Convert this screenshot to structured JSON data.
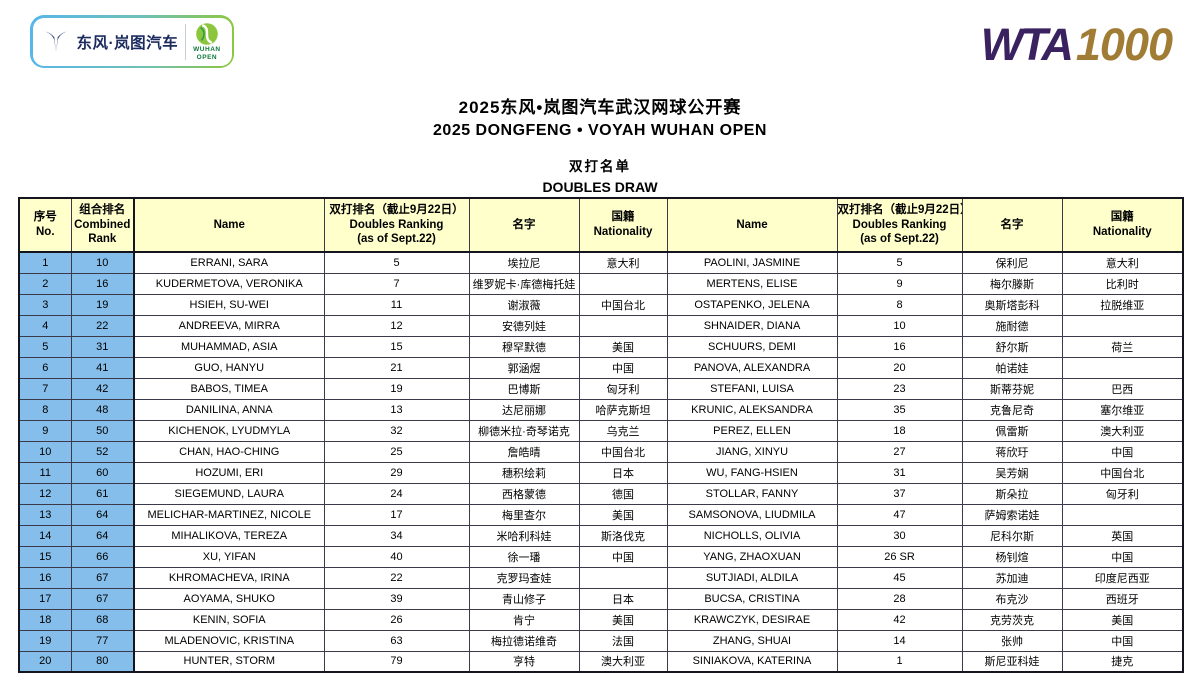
{
  "sponsor_logo": {
    "brand": "东风·岚图汽车",
    "event_line1": "WUHAN",
    "event_line2": "OPEN"
  },
  "wta_logo": {
    "wta": "WTA",
    "level": "1000"
  },
  "titles": {
    "title_cn": "2025东风•岚图汽车武汉网球公开赛",
    "title_en": "2025 DONGFENG • VOYAH WUHAN OPEN",
    "subtitle_cn": "双打名单",
    "subtitle_en": "DOUBLES DRAW"
  },
  "colors": {
    "header_bg": "#FFFFCC",
    "rank_col_bg": "#85BEEA",
    "wta_purple": "#3A2160",
    "wta_gold": "#A07C34",
    "voyah_navy": "#1B2B5E",
    "wuhan_green": "#8CC63E",
    "grid_border": "#3A3A4A"
  },
  "table": {
    "columns": [
      {
        "id": "no",
        "lines": [
          "序号",
          "No."
        ]
      },
      {
        "id": "combined",
        "lines": [
          "组合排名",
          "Combined",
          "Rank"
        ]
      },
      {
        "id": "name1",
        "lines": [
          "Name"
        ]
      },
      {
        "id": "rank1",
        "lines": [
          "双打排名（截止9月22日）",
          "Doubles Ranking",
          "(as of Sept.22)"
        ]
      },
      {
        "id": "cn1",
        "lines": [
          "名字"
        ]
      },
      {
        "id": "nat1",
        "lines": [
          "国籍",
          "Nationality"
        ]
      },
      {
        "id": "name2",
        "lines": [
          "Name"
        ]
      },
      {
        "id": "rank2",
        "lines": [
          "双打排名（截止9月22日）",
          "Doubles Ranking",
          "(as of Sept.22)"
        ]
      },
      {
        "id": "cn2",
        "lines": [
          "名字"
        ]
      },
      {
        "id": "nat2",
        "lines": [
          "国籍",
          "Nationality"
        ]
      }
    ],
    "rows": [
      {
        "no": "1",
        "combined": "10",
        "name1": "ERRANI, SARA",
        "rank1": "5",
        "cn1": "埃拉尼",
        "nat1": "意大利",
        "name2": "PAOLINI, JASMINE",
        "rank2": "5",
        "cn2": "保利尼",
        "nat2": "意大利"
      },
      {
        "no": "2",
        "combined": "16",
        "name1": "KUDERMETOVA, VERONIKA",
        "rank1": "7",
        "cn1": "维罗妮卡·库德梅托娃",
        "nat1": "",
        "name2": "MERTENS, ELISE",
        "rank2": "9",
        "cn2": "梅尔滕斯",
        "nat2": "比利时"
      },
      {
        "no": "3",
        "combined": "19",
        "name1": "HSIEH, SU-WEI",
        "rank1": "11",
        "cn1": "谢淑薇",
        "nat1": "中国台北",
        "name2": "OSTAPENKO, JELENA",
        "rank2": "8",
        "cn2": "奥斯塔彭科",
        "nat2": "拉脱维亚"
      },
      {
        "no": "4",
        "combined": "22",
        "name1": "ANDREEVA, MIRRA",
        "rank1": "12",
        "cn1": "安德列娃",
        "nat1": "",
        "name2": "SHNAIDER, DIANA",
        "rank2": "10",
        "cn2": "施耐德",
        "nat2": ""
      },
      {
        "no": "5",
        "combined": "31",
        "name1": "MUHAMMAD, ASIA",
        "rank1": "15",
        "cn1": "穆罕默德",
        "nat1": "美国",
        "name2": "SCHUURS, DEMI",
        "rank2": "16",
        "cn2": "舒尔斯",
        "nat2": "荷兰"
      },
      {
        "no": "6",
        "combined": "41",
        "name1": "GUO, HANYU",
        "rank1": "21",
        "cn1": "郭涵煜",
        "nat1": "中国",
        "name2": "PANOVA, ALEXANDRA",
        "rank2": "20",
        "cn2": "帕诺娃",
        "nat2": ""
      },
      {
        "no": "7",
        "combined": "42",
        "name1": "BABOS, TIMEA",
        "rank1": "19",
        "cn1": "巴博斯",
        "nat1": "匈牙利",
        "name2": "STEFANI, LUISA",
        "rank2": "23",
        "cn2": "斯蒂芬妮",
        "nat2": "巴西"
      },
      {
        "no": "8",
        "combined": "48",
        "name1": "DANILINA, ANNA",
        "rank1": "13",
        "cn1": "达尼丽娜",
        "nat1": "哈萨克斯坦",
        "name2": "KRUNIC, ALEKSANDRA",
        "rank2": "35",
        "cn2": "克鲁尼奇",
        "nat2": "塞尔维亚"
      },
      {
        "no": "9",
        "combined": "50",
        "name1": "KICHENOK, LYUDMYLA",
        "rank1": "32",
        "cn1": "柳德米拉·奇琴诺克",
        "nat1": "乌克兰",
        "name2": "PEREZ, ELLEN",
        "rank2": "18",
        "cn2": "佩雷斯",
        "nat2": "澳大利亚"
      },
      {
        "no": "10",
        "combined": "52",
        "name1": "CHAN, HAO-CHING",
        "rank1": "25",
        "cn1": "詹皓晴",
        "nat1": "中国台北",
        "name2": "JIANG, XINYU",
        "rank2": "27",
        "cn2": "蒋欣玗",
        "nat2": "中国"
      },
      {
        "no": "11",
        "combined": "60",
        "name1": "HOZUMI, ERI",
        "rank1": "29",
        "cn1": "穗积绘莉",
        "nat1": "日本",
        "name2": "WU, FANG-HSIEN",
        "rank2": "31",
        "cn2": "吴芳娴",
        "nat2": "中国台北"
      },
      {
        "no": "12",
        "combined": "61",
        "name1": "SIEGEMUND, LAURA",
        "rank1": "24",
        "cn1": "西格蒙德",
        "nat1": "德国",
        "name2": "STOLLAR, FANNY",
        "rank2": "37",
        "cn2": "斯朵拉",
        "nat2": "匈牙利"
      },
      {
        "no": "13",
        "combined": "64",
        "name1": "MELICHAR-MARTINEZ, NICOLE",
        "rank1": "17",
        "cn1": "梅里查尔",
        "nat1": "美国",
        "name2": "SAMSONOVA, LIUDMILA",
        "rank2": "47",
        "cn2": "萨姆索诺娃",
        "nat2": ""
      },
      {
        "no": "14",
        "combined": "64",
        "name1": "MIHALIKOVA, TEREZA",
        "rank1": "34",
        "cn1": "米哈利科娃",
        "nat1": "斯洛伐克",
        "name2": "NICHOLLS, OLIVIA",
        "rank2": "30",
        "cn2": "尼科尔斯",
        "nat2": "英国"
      },
      {
        "no": "15",
        "combined": "66",
        "name1": "XU, YIFAN",
        "rank1": "40",
        "cn1": "徐一璠",
        "nat1": "中国",
        "name2": "YANG, ZHAOXUAN",
        "rank2": "26 SR",
        "cn2": "杨钊煊",
        "nat2": "中国"
      },
      {
        "no": "16",
        "combined": "67",
        "name1": "KHROMACHEVA, IRINA",
        "rank1": "22",
        "cn1": "克罗玛查娃",
        "nat1": "",
        "name2": "SUTJIADI, ALDILA",
        "rank2": "45",
        "cn2": "苏加迪",
        "nat2": "印度尼西亚"
      },
      {
        "no": "17",
        "combined": "67",
        "name1": "AOYAMA, SHUKO",
        "rank1": "39",
        "cn1": "青山修子",
        "nat1": "日本",
        "name2": "BUCSA, CRISTINA",
        "rank2": "28",
        "cn2": "布克沙",
        "nat2": "西班牙"
      },
      {
        "no": "18",
        "combined": "68",
        "name1": "KENIN, SOFIA",
        "rank1": "26",
        "cn1": "肯宁",
        "nat1": "美国",
        "name2": "KRAWCZYK, DESIRAE",
        "rank2": "42",
        "cn2": "克劳茨克",
        "nat2": "美国"
      },
      {
        "no": "19",
        "combined": "77",
        "name1": "MLADENOVIC, KRISTINA",
        "rank1": "63",
        "cn1": "梅拉德诺维奇",
        "nat1": "法国",
        "name2": "ZHANG, SHUAI",
        "rank2": "14",
        "cn2": "张帅",
        "nat2": "中国"
      },
      {
        "no": "20",
        "combined": "80",
        "name1": "HUNTER, STORM",
        "rank1": "79",
        "cn1": "亨特",
        "nat1": "澳大利亚",
        "name2": "SINIAKOVA, KATERINA",
        "rank2": "1",
        "cn2": "斯尼亚科娃",
        "nat2": "捷克"
      }
    ]
  }
}
